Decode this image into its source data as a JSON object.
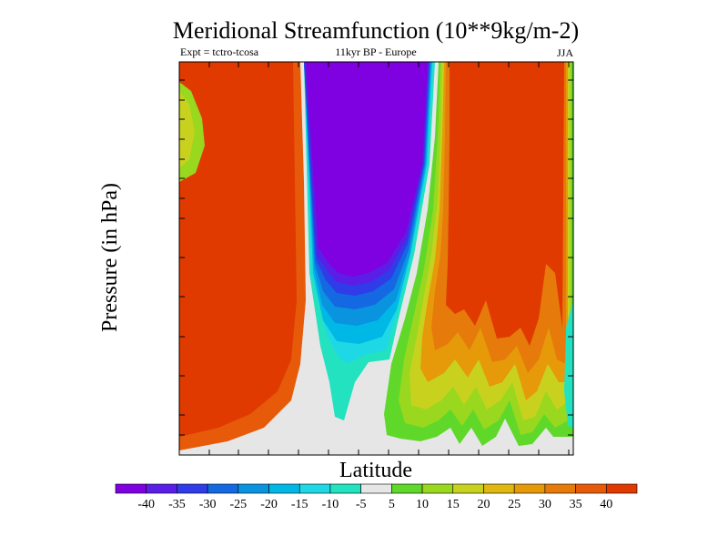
{
  "chart_data": {
    "type": "heatmap",
    "title": "Meridional Streamfunction (10**9kg/m-2)",
    "subtitle_left": "Expt = tctro-tcosa",
    "subtitle_center": "11kyr BP - Europe",
    "subtitle_right": "JJA",
    "xlabel": "Latitude",
    "ylabel": "Pressure (in hPa)",
    "colorbar": {
      "labels": [
        "-40",
        "-35",
        "-30",
        "-25",
        "-20",
        "-15",
        "-10",
        "-5",
        "5",
        "10",
        "15",
        "20",
        "25",
        "30",
        "35",
        "40"
      ],
      "colors": [
        "#7f00e0",
        "#5a1ee6",
        "#2f3ce8",
        "#1469e2",
        "#0a94e0",
        "#00b8e6",
        "#1fd8e6",
        "#22e2c0",
        "#e6e6e6",
        "#5fd82a",
        "#99d81e",
        "#c8d21e",
        "#e0b80f",
        "#e69a0a",
        "#e67a0a",
        "#e65a0a",
        "#e03a00"
      ]
    },
    "regions": {
      "left_positive": "#e03a00",
      "left_inner_edge": "#e65a0a",
      "left_yellow_patch": "#c8d21e",
      "left_green_patch": "#99d81e",
      "center_negative": "#7f00e0",
      "center_band_1": "#5a1ee6",
      "center_band_2": "#2f3ce8",
      "center_band_3": "#1469e2",
      "center_band_4": "#0a94e0",
      "center_band_5": "#00b8e6",
      "center_band_6": "#1fd8e6",
      "center_tail": "#22e2c0",
      "right_green": "#5fd82a",
      "right_lime": "#99d81e",
      "right_yellow": "#c8d21e",
      "right_orange": "#e69a0a",
      "right_darkorange": "#e67a0a",
      "right_positive": "#e03a00",
      "neutral": "#e6e6e6"
    }
  }
}
